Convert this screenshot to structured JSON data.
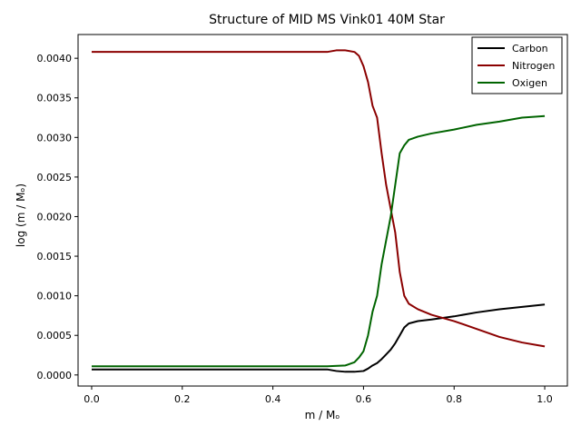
{
  "chart_data": {
    "type": "line",
    "title": "Structure of MID MS Vink01 40M Star",
    "xlabel": "m / Mₒ",
    "ylabel": "log (m / Mₒ)",
    "xlim": [
      -0.03,
      1.05
    ],
    "ylim": [
      -0.00014,
      0.0043
    ],
    "xticks": [
      0.0,
      0.2,
      0.4,
      0.6,
      0.8,
      1.0
    ],
    "xtick_labels": [
      "0.0",
      "0.2",
      "0.4",
      "0.6",
      "0.8",
      "1.0"
    ],
    "yticks": [
      0.0,
      0.0005,
      0.001,
      0.0015,
      0.002,
      0.0025,
      0.003,
      0.0035,
      0.004
    ],
    "ytick_labels": [
      "0.0000",
      "0.0005",
      "0.0010",
      "0.0015",
      "0.0020",
      "0.0025",
      "0.0030",
      "0.0035",
      "0.0040"
    ],
    "grid": false,
    "legend_position": "top-right",
    "series": [
      {
        "name": "Carbon",
        "color": "#000000",
        "x": [
          0.0,
          0.1,
          0.2,
          0.3,
          0.4,
          0.52,
          0.54,
          0.56,
          0.58,
          0.6,
          0.61,
          0.62,
          0.63,
          0.64,
          0.65,
          0.66,
          0.67,
          0.68,
          0.69,
          0.7,
          0.72,
          0.75,
          0.8,
          0.85,
          0.9,
          0.95,
          1.0
        ],
        "y": [
          7e-05,
          7e-05,
          7e-05,
          7e-05,
          7e-05,
          7e-05,
          5e-05,
          4e-05,
          4e-05,
          5e-05,
          8e-05,
          0.00012,
          0.00015,
          0.0002,
          0.00026,
          0.00032,
          0.0004,
          0.0005,
          0.0006,
          0.00065,
          0.00068,
          0.0007,
          0.00074,
          0.00079,
          0.00083,
          0.00086,
          0.00089
        ]
      },
      {
        "name": "Nitrogen",
        "color": "#8b0000",
        "x": [
          0.0,
          0.1,
          0.2,
          0.3,
          0.4,
          0.52,
          0.54,
          0.56,
          0.58,
          0.59,
          0.6,
          0.61,
          0.62,
          0.63,
          0.64,
          0.65,
          0.66,
          0.67,
          0.68,
          0.69,
          0.7,
          0.72,
          0.75,
          0.8,
          0.85,
          0.9,
          0.95,
          1.0
        ],
        "y": [
          0.00408,
          0.00408,
          0.00408,
          0.00408,
          0.00408,
          0.00408,
          0.0041,
          0.0041,
          0.00408,
          0.00403,
          0.0039,
          0.0037,
          0.0034,
          0.00325,
          0.0028,
          0.0024,
          0.0021,
          0.0018,
          0.0013,
          0.001,
          0.0009,
          0.00083,
          0.00076,
          0.00068,
          0.00058,
          0.00048,
          0.00041,
          0.00036
        ]
      },
      {
        "name": "Oxigen",
        "color": "#006400",
        "x": [
          0.0,
          0.1,
          0.2,
          0.3,
          0.4,
          0.52,
          0.56,
          0.58,
          0.59,
          0.6,
          0.61,
          0.62,
          0.63,
          0.64,
          0.65,
          0.66,
          0.67,
          0.68,
          0.69,
          0.7,
          0.72,
          0.75,
          0.8,
          0.85,
          0.9,
          0.95,
          1.0
        ],
        "y": [
          0.00011,
          0.00011,
          0.00011,
          0.00011,
          0.00011,
          0.00011,
          0.00012,
          0.00016,
          0.00022,
          0.0003,
          0.0005,
          0.0008,
          0.001,
          0.0014,
          0.0017,
          0.002,
          0.0024,
          0.0028,
          0.0029,
          0.00297,
          0.00301,
          0.00305,
          0.0031,
          0.00316,
          0.0032,
          0.00325,
          0.00327
        ]
      }
    ]
  }
}
